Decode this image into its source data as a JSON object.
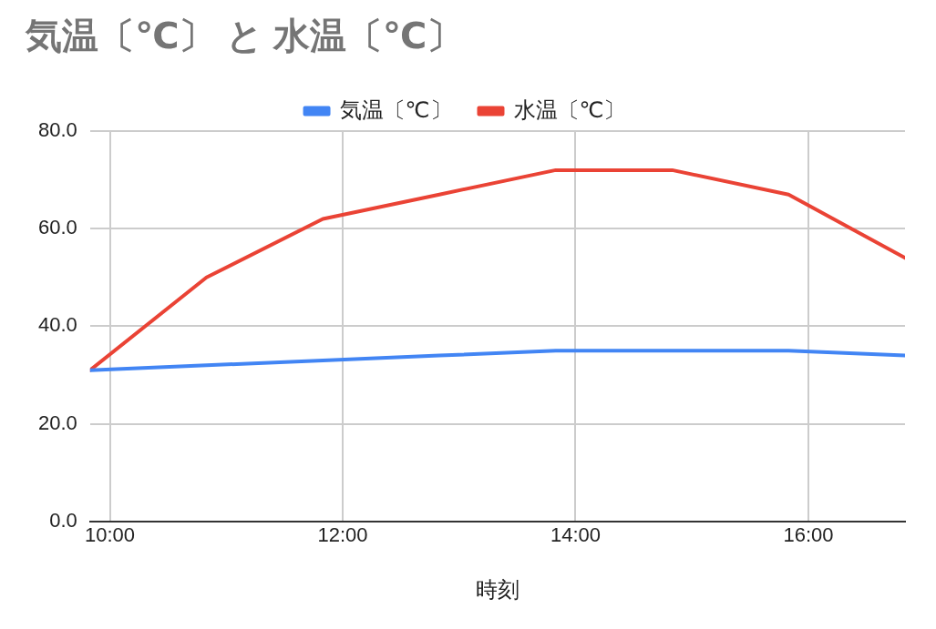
{
  "chart_data": {
    "type": "line",
    "title": "気温〔℃〕 と 水温〔℃〕",
    "xlabel": "時刻",
    "x": [
      9.83,
      10.83,
      11.83,
      12.83,
      13.83,
      14.83,
      15.83,
      16.83
    ],
    "series": [
      {
        "name": "気温〔℃〕",
        "color": "#4285f4",
        "values": [
          31,
          32,
          33,
          34,
          35,
          35,
          35,
          34
        ]
      },
      {
        "name": "水温〔℃〕",
        "color": "#ea4335",
        "values": [
          31,
          50,
          62,
          67,
          72,
          72,
          67,
          54
        ]
      }
    ],
    "xlim": [
      9.83,
      16.83
    ],
    "xticks": [
      {
        "value": 10,
        "label": "10:00"
      },
      {
        "value": 12,
        "label": "12:00"
      },
      {
        "value": 14,
        "label": "14:00"
      },
      {
        "value": 16,
        "label": "16:00"
      }
    ],
    "ylim": [
      0,
      80
    ],
    "yticks": [
      {
        "value": 0,
        "label": "0.0"
      },
      {
        "value": 20,
        "label": "20.0"
      },
      {
        "value": 40,
        "label": "40.0"
      },
      {
        "value": 60,
        "label": "60.0"
      },
      {
        "value": 80,
        "label": "80.0"
      }
    ],
    "grid": true,
    "legend": "top",
    "marker": "none",
    "line_style": "solid"
  }
}
